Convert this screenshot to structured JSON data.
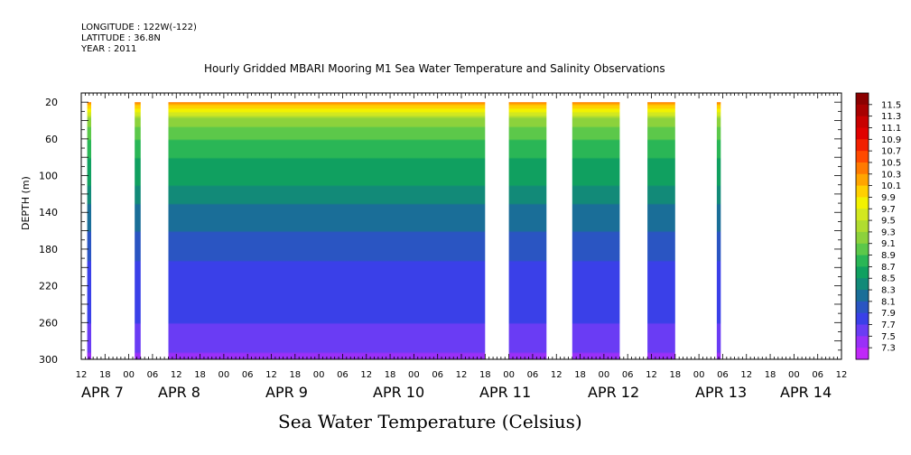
{
  "header": {
    "longitude": "LONGITUDE : 122W(-122)",
    "latitude": "LATITUDE : 36.8N",
    "year": "YEAR : 2011"
  },
  "chart_data": {
    "type": "heatmap",
    "title": "Hourly Gridded MBARI Mooring M1 Sea Water Temperature and Salinity Observations",
    "colorbar_label": "Sea Water Temperature (Celsius)",
    "ylabel": "DEPTH (m)",
    "y_ticks": [
      20,
      60,
      100,
      140,
      180,
      220,
      260,
      300
    ],
    "ylim": [
      300,
      10
    ],
    "x_hour_ticks": [
      "12",
      "18",
      "00",
      "06",
      "12",
      "18",
      "00",
      "06",
      "12",
      "18",
      "00",
      "06",
      "12",
      "18",
      "00",
      "06",
      "12",
      "18",
      "00",
      "06",
      "12",
      "18",
      "00",
      "06",
      "12",
      "18",
      "00",
      "06",
      "12",
      "18",
      "00",
      "06",
      "12"
    ],
    "x_day_labels": [
      "APR  7",
      "APR  8",
      "APR  9",
      "APR 10",
      "APR 11",
      "APR 12",
      "APR 13",
      "APR 14"
    ],
    "x_range": [
      "2011-04-06 12:00",
      "2011-04-14 12:00"
    ],
    "colorbar_levels": [
      "11.5",
      "11.3",
      "11.1",
      "10.9",
      "10.7",
      "10.5",
      "10.3",
      "10.1",
      "9.9",
      "9.7",
      "9.5",
      "9.3",
      "9.1",
      "8.9",
      "8.7",
      "8.5",
      "8.3",
      "8.1",
      "7.9",
      "7.7",
      "7.5",
      "7.3"
    ],
    "colorbar_colors": [
      "#8b0000",
      "#a80000",
      "#c80000",
      "#e00000",
      "#f22000",
      "#ff4a00",
      "#ff7a00",
      "#ffa500",
      "#ffd000",
      "#f2f200",
      "#d2e820",
      "#b0dc30",
      "#8cd23c",
      "#5cc84a",
      "#2ab656",
      "#10a060",
      "#128a78",
      "#1a6e98",
      "#2a55c2",
      "#3a40e8",
      "#6a3cf4",
      "#9a30f8",
      "#c028f8"
    ],
    "data_segments": [
      [
        "2011-04-06 13:30",
        "2011-04-06 14:30"
      ],
      [
        "2011-04-07 01:30",
        "2011-04-07 03:00"
      ],
      [
        "2011-04-07 10:00",
        "2011-04-10 18:00"
      ],
      [
        "2011-04-11 00:00",
        "2011-04-11 09:30"
      ],
      [
        "2011-04-11 16:00",
        "2011-04-12 04:00"
      ],
      [
        "2011-04-12 11:00",
        "2011-04-12 18:00"
      ],
      [
        "2011-04-13 04:30",
        "2011-04-13 05:30"
      ]
    ],
    "profile": [
      {
        "depth": 20,
        "temp": 10.3
      },
      {
        "depth": 30,
        "temp": 9.7
      },
      {
        "depth": 40,
        "temp": 9.2
      },
      {
        "depth": 60,
        "temp": 8.9
      },
      {
        "depth": 80,
        "temp": 8.7
      },
      {
        "depth": 100,
        "temp": 8.6
      },
      {
        "depth": 120,
        "temp": 8.4
      },
      {
        "depth": 140,
        "temp": 8.2
      },
      {
        "depth": 160,
        "temp": 8.1
      },
      {
        "depth": 180,
        "temp": 7.95
      },
      {
        "depth": 220,
        "temp": 7.8
      },
      {
        "depth": 260,
        "temp": 7.7
      },
      {
        "depth": 300,
        "temp": 7.45
      }
    ]
  }
}
